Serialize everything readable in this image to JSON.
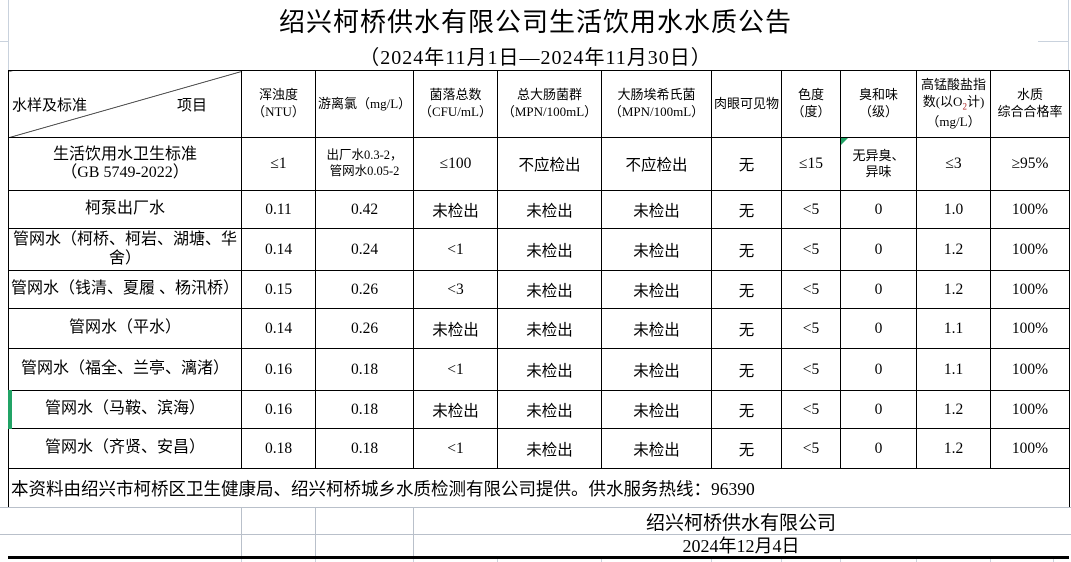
{
  "title": "绍兴柯桥供水有限公司生活饮用水水质公告",
  "subtitle": "（2024年11月1日—2024年11月30日）",
  "table": {
    "corner": {
      "left": "水样及标准",
      "right": "项目"
    },
    "columns": [
      "浑浊度\n（NTU）",
      "游离氯（mg/L）",
      "菌落总数\n（CFU/mL）",
      "总大肠菌群\n（MPN/100mL）",
      "大肠埃希氏菌\n（MPN/100mL）",
      "肉眼可见物",
      "色度\n（度）",
      "臭和味\n（级）",
      {
        "pre": "高锰酸盐指数(以O",
        "sub": "2",
        "post": "计)（mg/L）"
      },
      "水质\n综合合格率"
    ],
    "rows": [
      {
        "label": "生活饮用水卫生标准\n（GB 5749-2022）",
        "values": [
          "≤1",
          "出厂水0.3-2，\n管网水0.05-2",
          "≤100",
          "不应检出",
          "不应检出",
          "无",
          "≤15",
          "无异臭、\n异味",
          "≤3",
          "≥95%"
        ]
      },
      {
        "label": "柯泵出厂水",
        "values": [
          "0.11",
          "0.42",
          "未检出",
          "未检出",
          "未检出",
          "无",
          "<5",
          "0",
          "1.0",
          "100%"
        ]
      },
      {
        "label": "管网水（柯桥、柯岩、湖塘、华舍）",
        "values": [
          "0.14",
          "0.24",
          "<1",
          "未检出",
          "未检出",
          "无",
          "<5",
          "0",
          "1.2",
          "100%"
        ]
      },
      {
        "label": "管网水（钱清、夏履 、杨汛桥）",
        "values": [
          "0.15",
          "0.26",
          "<3",
          "未检出",
          "未检出",
          "无",
          "<5",
          "0",
          "1.2",
          "100%"
        ]
      },
      {
        "label": "管网水（平水）",
        "values": [
          "0.14",
          "0.26",
          "未检出",
          "未检出",
          "未检出",
          "无",
          "<5",
          "0",
          "1.1",
          "100%"
        ]
      },
      {
        "label": "管网水（福全、兰亭、漓渚）",
        "values": [
          "0.16",
          "0.18",
          "<1",
          "未检出",
          "未检出",
          "无",
          "<5",
          "0",
          "1.1",
          "100%"
        ]
      },
      {
        "label": "管网水（马鞍、滨海）",
        "values": [
          "0.16",
          "0.18",
          "未检出",
          "未检出",
          "未检出",
          "无",
          "<5",
          "0",
          "1.2",
          "100%"
        ]
      },
      {
        "label": "管网水（齐贤、安昌）",
        "values": [
          "0.18",
          "0.18",
          "<1",
          "未检出",
          "未检出",
          "无",
          "<5",
          "0",
          "1.2",
          "100%"
        ]
      }
    ]
  },
  "footer": {
    "note": "本资料由绍兴市柯桥区卫生健康局、绍兴柯桥城乡水质检测有限公司提供。供水服务热线：96390",
    "company": "绍兴柯桥供水有限公司",
    "date": "2024年12月4日"
  },
  "colors": {
    "border": "#000000",
    "gridline": "#b9c0ca",
    "marker_green": "#21a366",
    "subscript_red": "#aa2222"
  }
}
